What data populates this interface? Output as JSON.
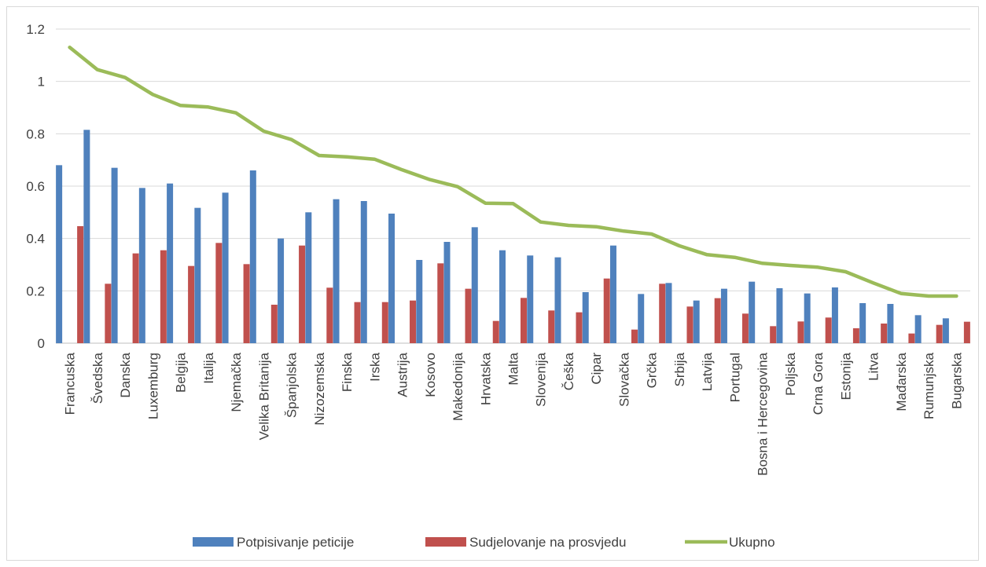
{
  "chart_data": {
    "type": "bar",
    "title": "",
    "xlabel": "",
    "ylabel": "",
    "ylim": [
      0,
      1.2
    ],
    "yticks": [
      "0",
      "0.2",
      "0.4",
      "0.6",
      "0.8",
      "1",
      "1.2"
    ],
    "grid": true,
    "legend_position": "bottom",
    "categories": [
      "Francuska",
      "Švedska",
      "Danska",
      "Luxemburg",
      "Belgija",
      "Italija",
      "Njemačka",
      "Velika Britanija",
      "Španjolska",
      "Nizozemska",
      "Finska",
      "Irska",
      "Austrija",
      "Kosovo",
      "Makedonija",
      "Hrvatska",
      "Malta",
      "Slovenija",
      "Češka",
      "Cipar",
      "Slovačka",
      "Grčka",
      "Srbija",
      "Latvija",
      "Portugal",
      "Bosna i Hercegovina",
      "Poljska",
      "Crna Gora",
      "Estonija",
      "Litva",
      "Mađarska",
      "Rumunjska",
      "Bugarska"
    ],
    "series": [
      {
        "name": "Potpisivanje peticije",
        "type": "bar",
        "color": "#4f81bd",
        "values": [
          0.68,
          0.815,
          0.67,
          0.593,
          0.61,
          0.517,
          0.575,
          0.66,
          0.4,
          0.5,
          0.55,
          0.543,
          0.495,
          0.318,
          0.387,
          0.443,
          0.355,
          0.335,
          0.328,
          0.195,
          0.373,
          0.188,
          0.23,
          0.163,
          0.208,
          0.235,
          0.21,
          0.19,
          0.213,
          0.153,
          0.15,
          0.107,
          0.095
        ]
      },
      {
        "name": "Sudjelovanje na prosvjedu",
        "type": "bar",
        "color": "#c0504d",
        "values": [
          0.447,
          0.227,
          0.343,
          0.355,
          0.295,
          0.383,
          0.302,
          0.147,
          0.373,
          0.212,
          0.157,
          0.157,
          0.163,
          0.305,
          0.208,
          0.085,
          0.173,
          0.125,
          0.118,
          0.247,
          0.052,
          0.227,
          0.14,
          0.172,
          0.113,
          0.065,
          0.083,
          0.098,
          0.057,
          0.075,
          0.037,
          0.07,
          0.082
        ]
      },
      {
        "name": "Ukupno",
        "type": "line",
        "color": "#9bbb59",
        "values": [
          1.13,
          1.045,
          1.015,
          0.95,
          0.908,
          0.902,
          0.88,
          0.81,
          0.778,
          0.717,
          0.712,
          0.703,
          0.662,
          0.625,
          0.598,
          0.535,
          0.533,
          0.463,
          0.45,
          0.445,
          0.428,
          0.417,
          0.372,
          0.338,
          0.328,
          0.305,
          0.297,
          0.29,
          0.273,
          0.23,
          0.19,
          0.18,
          0.18
        ]
      }
    ]
  }
}
